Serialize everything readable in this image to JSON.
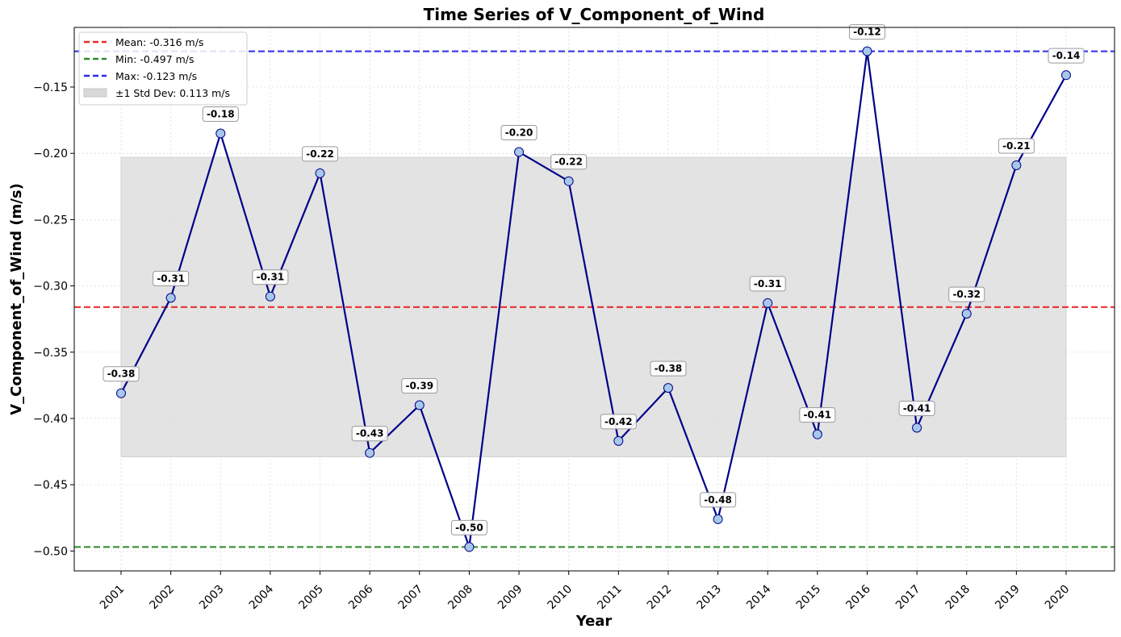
{
  "chart_data": {
    "type": "line",
    "title": "Time Series of V_Component_of_Wind",
    "xlabel": "Year",
    "ylabel": "V_Component_of_Wind (m/s)",
    "x": [
      "2001",
      "2002",
      "2003",
      "2004",
      "2005",
      "2006",
      "2007",
      "2008",
      "2009",
      "2010",
      "2011",
      "2012",
      "2013",
      "2014",
      "2015",
      "2016",
      "2017",
      "2018",
      "2019",
      "2020"
    ],
    "values": [
      -0.381,
      -0.309,
      -0.185,
      -0.308,
      -0.215,
      -0.426,
      -0.39,
      -0.497,
      -0.199,
      -0.221,
      -0.417,
      -0.377,
      -0.476,
      -0.313,
      -0.412,
      -0.123,
      -0.407,
      -0.321,
      -0.209,
      -0.141
    ],
    "data_labels": [
      "-0.38",
      "-0.31",
      "-0.18",
      "-0.31",
      "-0.22",
      "-0.43",
      "-0.39",
      "-0.50",
      "-0.20",
      "-0.22",
      "-0.42",
      "-0.38",
      "-0.48",
      "-0.31",
      "-0.41",
      "-0.12",
      "-0.41",
      "-0.32",
      "-0.21",
      "-0.14"
    ],
    "ylim": [
      -0.515,
      -0.105
    ],
    "yticks": [
      -0.5,
      -0.45,
      -0.4,
      -0.35,
      -0.3,
      -0.25,
      -0.2,
      -0.15
    ],
    "ytick_labels": [
      "−0.50",
      "−0.45",
      "−0.40",
      "−0.35",
      "−0.30",
      "−0.25",
      "−0.20",
      "−0.15"
    ],
    "grid": true,
    "legend_position": "top-left",
    "reference_lines": [
      {
        "label": "Mean: -0.316 m/s",
        "value": -0.316,
        "color": "#e8282a"
      },
      {
        "label": "Min: -0.497 m/s",
        "value": -0.497,
        "color": "#2a8a2a"
      },
      {
        "label": "Max: -0.123 m/s",
        "value": -0.123,
        "color": "#2a2ae8"
      }
    ],
    "band": {
      "label": "±1 Std Dev: 0.113 m/s",
      "lower": -0.429,
      "upper": -0.203,
      "color": "#d9d9d9"
    },
    "line_color": "#00008b",
    "marker_fill": "#a7c8ea",
    "marker_edge": "#00008b"
  }
}
